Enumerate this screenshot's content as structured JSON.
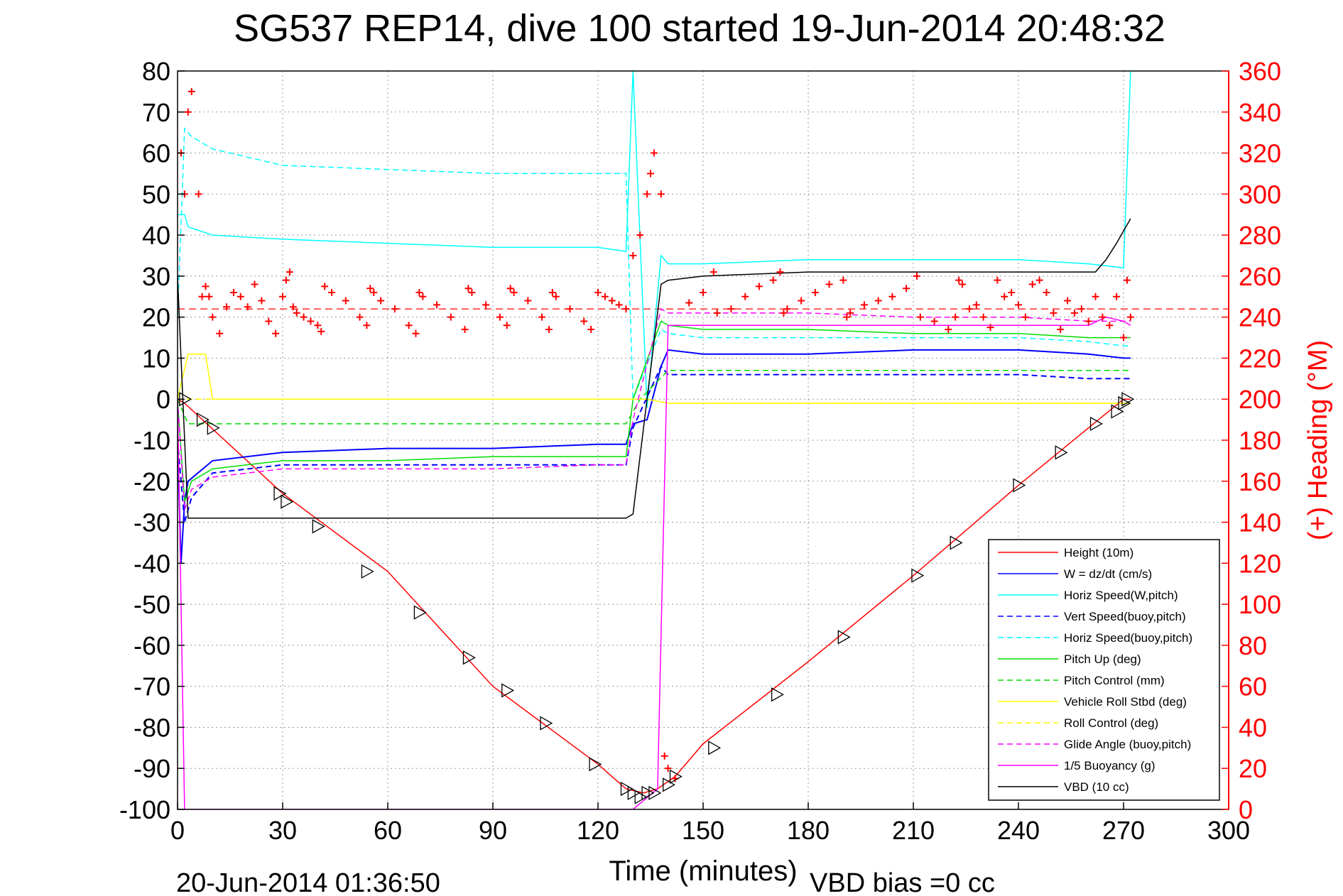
{
  "chart_data": {
    "type": "line",
    "title": "SG537 REP14, dive 100 started 19-Jun-2014 20:48:32",
    "xlabel": "Time (minutes)",
    "ylabel_right": "(+) Heading (°M)",
    "footer_left": "20-Jun-2014 01:36:50",
    "footer_right": "VBD bias =0 cc",
    "xlim": [
      0,
      300
    ],
    "ylim": [
      -100,
      80
    ],
    "ylim_right": [
      0,
      360
    ],
    "x_ticks": [
      "0",
      "30",
      "60",
      "90",
      "120",
      "150",
      "180",
      "210",
      "240",
      "270",
      "300"
    ],
    "y_ticks": [
      "80",
      "70",
      "60",
      "50",
      "40",
      "30",
      "20",
      "10",
      "0",
      "-10",
      "-20",
      "-30",
      "-40",
      "-50",
      "-60",
      "-70",
      "-80",
      "-90",
      "-100"
    ],
    "y_ticks_right": [
      "360",
      "340",
      "320",
      "300",
      "280",
      "260",
      "240",
      "220",
      "200",
      "180",
      "160",
      "140",
      "120",
      "100",
      "80",
      "60",
      "40",
      "20",
      "0"
    ],
    "grid": true,
    "legend_position": "bottom-right",
    "heading_ref": 244,
    "series": [
      {
        "name": "Height (10m)",
        "color": "#ff0000",
        "style": "solid",
        "x": [
          0,
          2,
          30,
          60,
          90,
          120,
          128,
          133,
          137,
          142,
          150,
          180,
          210,
          240,
          270,
          272
        ],
        "y": [
          0,
          -1,
          -23,
          -42,
          -70,
          -89,
          -95,
          -96,
          -95,
          -92,
          -84,
          -64,
          -43,
          -21,
          0,
          0
        ]
      },
      {
        "name": "W = dz/dt (cm/s)",
        "color": "#0000ff",
        "style": "solid",
        "x": [
          0,
          1,
          2,
          3,
          10,
          30,
          60,
          90,
          120,
          128,
          130,
          134,
          138,
          140,
          150,
          180,
          210,
          240,
          260,
          270,
          272
        ],
        "y": [
          -10,
          -40,
          -25,
          -20,
          -15,
          -13,
          -12,
          -12,
          -11,
          -11,
          -6,
          -5,
          8,
          12,
          11,
          11,
          12,
          12,
          11,
          10,
          10
        ]
      },
      {
        "name": "Horiz Speed(W,pitch)",
        "color": "#00ffff",
        "style": "solid",
        "x": [
          0,
          2,
          3,
          10,
          30,
          60,
          90,
          120,
          128,
          130,
          134,
          138,
          140,
          150,
          180,
          210,
          240,
          260,
          270,
          272
        ],
        "y": [
          45,
          45,
          42,
          40,
          39,
          38,
          37,
          37,
          36,
          80,
          -2,
          35,
          33,
          33,
          34,
          34,
          34,
          33,
          32,
          80
        ]
      },
      {
        "name": "Vert Speed(buoy,pitch)",
        "color": "#0000ff",
        "style": "dashed",
        "x": [
          0,
          2,
          4,
          10,
          30,
          60,
          90,
          120,
          128,
          130,
          138,
          140,
          150,
          180,
          210,
          240,
          260,
          270,
          272
        ],
        "y": [
          -10,
          -30,
          -24,
          -18,
          -16,
          -16,
          -16,
          -16,
          -16,
          -7,
          8,
          6,
          6,
          6,
          6,
          6,
          5,
          5,
          5
        ]
      },
      {
        "name": "Horiz Speed(buoy,pitch)",
        "color": "#00ffff",
        "style": "dashed",
        "x": [
          0,
          2,
          4,
          10,
          30,
          60,
          90,
          120,
          128,
          130,
          138,
          140,
          150,
          180,
          210,
          240,
          260,
          270,
          272
        ],
        "y": [
          20,
          66,
          64,
          61,
          57,
          56,
          55,
          55,
          55,
          0,
          17,
          16,
          15,
          15,
          15,
          15,
          14,
          13,
          13
        ]
      },
      {
        "name": "Pitch Up (deg)",
        "color": "#00dd00",
        "style": "solid",
        "x": [
          0,
          2,
          4,
          10,
          30,
          60,
          90,
          120,
          128,
          130,
          138,
          140,
          150,
          180,
          210,
          240,
          260,
          270,
          272
        ],
        "y": [
          0,
          -25,
          -20,
          -17,
          -15,
          -15,
          -14,
          -14,
          -14,
          0,
          19,
          18,
          17,
          17,
          16,
          16,
          15,
          15,
          15
        ]
      },
      {
        "name": "Pitch Control (mm)",
        "color": "#00dd00",
        "style": "dashed",
        "x": [
          0,
          3,
          60,
          128,
          132,
          140,
          180,
          240,
          272
        ],
        "y": [
          0,
          -6,
          -6,
          -6,
          0,
          7,
          7,
          7,
          7
        ]
      },
      {
        "name": "Vehicle Roll Stbd (deg)",
        "color": "#ffff00",
        "style": "solid",
        "x": [
          0,
          3,
          8,
          10,
          30,
          60,
          90,
          120,
          128,
          134,
          140,
          150,
          180,
          210,
          240,
          270,
          272
        ],
        "y": [
          0,
          11,
          11,
          0,
          0,
          0,
          0,
          0,
          0,
          0,
          -1,
          -1,
          -1,
          -1,
          -1,
          -1,
          -1
        ]
      },
      {
        "name": "Roll Control (deg)",
        "color": "#ffff00",
        "style": "dashed",
        "x": [
          0,
          3,
          10,
          30,
          60,
          90,
          120,
          128,
          134,
          140,
          150,
          180,
          210,
          240,
          270,
          272
        ],
        "y": [
          0,
          0,
          0,
          0,
          0,
          0,
          0,
          0,
          0,
          -1,
          -1,
          -1,
          -1,
          -1,
          -1,
          -1
        ]
      },
      {
        "name": "Glide Angle (buoy,pitch)",
        "color": "#ff00ff",
        "style": "dashed",
        "x": [
          0,
          2,
          4,
          10,
          30,
          60,
          90,
          120,
          128,
          130,
          138,
          140,
          150,
          180,
          210,
          240,
          260,
          270,
          272
        ],
        "y": [
          0,
          -27,
          -22,
          -19,
          -17,
          -17,
          -17,
          -16,
          -16,
          -5,
          22,
          21,
          21,
          21,
          20,
          20,
          19,
          19,
          19
        ]
      },
      {
        "name": "1/5 Buoyancy (g)",
        "color": "#ff00ff",
        "style": "solid",
        "x": [
          0,
          2,
          3,
          10,
          60,
          120,
          128,
          130,
          137,
          140,
          200,
          260,
          265,
          270,
          272
        ],
        "y": [
          0,
          -100,
          -100,
          -100,
          -100,
          -100,
          -100,
          -100,
          -95,
          18,
          18,
          18,
          20,
          19,
          18
        ]
      },
      {
        "name": "VBD (10 cc)",
        "color": "#000000",
        "style": "solid",
        "x": [
          0,
          1,
          3,
          10,
          60,
          128,
          130,
          138,
          140,
          150,
          180,
          210,
          240,
          262,
          265,
          268,
          270,
          272
        ],
        "y": [
          30,
          10,
          -29,
          -29,
          -29,
          -29,
          -28,
          28,
          29,
          30,
          31,
          31,
          31,
          31,
          34,
          38,
          41,
          44
        ]
      }
    ],
    "heading": {
      "name": "(+) Heading",
      "color": "#ff0000",
      "axis": "right",
      "x": [
        1,
        2,
        3,
        4,
        6,
        7,
        8,
        9,
        10,
        12,
        14,
        16,
        18,
        20,
        22,
        24,
        26,
        28,
        30,
        31,
        32,
        33,
        34,
        36,
        38,
        40,
        41,
        42,
        44,
        48,
        52,
        54,
        55,
        56,
        58,
        62,
        66,
        68,
        69,
        70,
        74,
        78,
        82,
        83,
        84,
        88,
        92,
        94,
        95,
        96,
        100,
        104,
        106,
        107,
        108,
        112,
        116,
        118,
        120,
        122,
        124,
        126,
        128,
        130,
        132,
        134,
        135,
        136,
        138,
        139,
        140,
        142,
        146,
        150,
        153,
        154,
        158,
        162,
        166,
        170,
        172,
        173,
        174,
        178,
        182,
        186,
        190,
        191,
        192,
        196,
        200,
        204,
        208,
        211,
        212,
        216,
        220,
        222,
        223,
        224,
        226,
        228,
        230,
        232,
        234,
        236,
        238,
        240,
        242,
        244,
        246,
        248,
        250,
        252,
        254,
        256,
        258,
        260,
        262,
        264,
        266,
        268,
        270,
        271,
        272
      ],
      "y": [
        320,
        300,
        340,
        350,
        300,
        250,
        255,
        250,
        240,
        232,
        245,
        252,
        250,
        245,
        256,
        248,
        238,
        232,
        250,
        258,
        262,
        245,
        242,
        240,
        238,
        236,
        233,
        255,
        252,
        248,
        240,
        236,
        254,
        252,
        248,
        244,
        236,
        232,
        252,
        250,
        246,
        240,
        234,
        254,
        252,
        246,
        240,
        236,
        254,
        252,
        248,
        240,
        234,
        252,
        250,
        244,
        238,
        234,
        252,
        250,
        248,
        246,
        244,
        270,
        280,
        300,
        310,
        320,
        300,
        26,
        20,
        15,
        247,
        252,
        262,
        242,
        244,
        250,
        255,
        258,
        262,
        242,
        244,
        248,
        252,
        256,
        258,
        240,
        242,
        246,
        248,
        250,
        254,
        260,
        240,
        238,
        234,
        240,
        258,
        256,
        244,
        246,
        240,
        235,
        258,
        250,
        252,
        246,
        240,
        256,
        258,
        252,
        242,
        234,
        248,
        242,
        244,
        238,
        250,
        240,
        236,
        250,
        230,
        258,
        240
      ]
    },
    "markers": {
      "x": [
        2,
        7,
        10,
        29,
        31,
        40,
        54,
        69,
        83,
        94,
        105,
        119,
        128,
        130,
        132,
        134,
        136,
        140,
        142,
        153,
        171,
        190,
        211,
        222,
        240,
        252,
        262,
        268,
        270,
        271
      ],
      "y": [
        0,
        -5,
        -7,
        -23,
        -25,
        -31,
        -42,
        -52,
        -63,
        -71,
        -79,
        -89,
        -95,
        -96,
        -97,
        -96,
        -96,
        -94,
        -92,
        -85,
        -72,
        -58,
        -43,
        -35,
        -21,
        -13,
        -6,
        -3,
        -1,
        0
      ]
    }
  }
}
